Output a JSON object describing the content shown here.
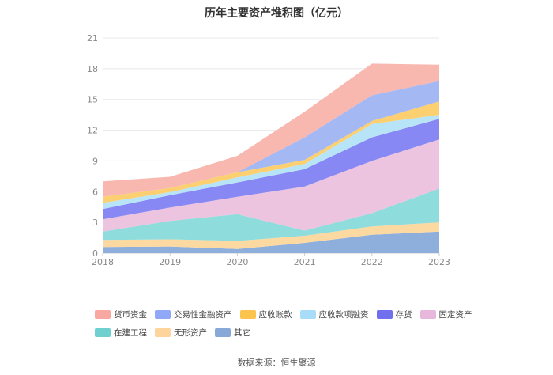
{
  "chart_data": {
    "type": "area",
    "title": "历年主要资产堆积图（亿元）",
    "x": [
      "2018",
      "2019",
      "2020",
      "2021",
      "2022",
      "2023"
    ],
    "y_ticks": [
      "0",
      "3",
      "6",
      "9",
      "12",
      "15",
      "18",
      "21"
    ],
    "ylim": [
      0,
      21
    ],
    "stacked": true,
    "grid": true,
    "legend_position": "bottom",
    "series": [
      {
        "name": "其它",
        "color": "#8eaedc",
        "values": [
          0.6,
          0.65,
          0.4,
          1.0,
          1.8,
          2.1
        ]
      },
      {
        "name": "无形资产",
        "color": "#fcd9a0",
        "values": [
          0.7,
          0.7,
          0.8,
          0.7,
          0.8,
          0.9
        ]
      },
      {
        "name": "在建工程",
        "color": "#8edcdc",
        "values": [
          0.8,
          1.8,
          2.6,
          0.5,
          1.3,
          3.3
        ]
      },
      {
        "name": "固定资产",
        "color": "#ecc4e0",
        "values": [
          1.2,
          1.3,
          1.7,
          4.3,
          5.1,
          4.8
        ]
      },
      {
        "name": "存货",
        "color": "#8888f4",
        "values": [
          1.0,
          1.2,
          1.4,
          1.7,
          2.3,
          2.0
        ]
      },
      {
        "name": "应收款项融资",
        "color": "#b8e4f8",
        "values": [
          0.6,
          0.3,
          0.5,
          0.5,
          1.3,
          0.4
        ]
      },
      {
        "name": "应收账款",
        "color": "#fcd070",
        "values": [
          0.6,
          0.4,
          0.5,
          0.4,
          0.3,
          1.3
        ]
      },
      {
        "name": "交易性金融资产",
        "color": "#a4b8f4",
        "values": [
          0.0,
          0.0,
          0.0,
          2.2,
          2.5,
          2.0
        ]
      },
      {
        "name": "货币资金",
        "color": "#f8b8b0",
        "values": [
          1.5,
          1.1,
          1.6,
          2.5,
          3.1,
          1.6
        ]
      }
    ]
  },
  "legend": {
    "row1": [
      {
        "label": "货币资金",
        "color": "#f8a8a0"
      },
      {
        "label": "交易性金融资产",
        "color": "#90a8f8"
      },
      {
        "label": "应收账款",
        "color": "#fcc44c"
      },
      {
        "label": "应收款项融资",
        "color": "#a8dcf8"
      },
      {
        "label": "存货",
        "color": "#7070ee"
      },
      {
        "label": "固定资产",
        "color": "#e8b8dc"
      }
    ],
    "row2": [
      {
        "label": "在建工程",
        "color": "#70d0d0"
      },
      {
        "label": "无形资产",
        "color": "#fcd49c"
      },
      {
        "label": "其它",
        "color": "#88a8d8"
      }
    ]
  },
  "source": "数据来源：恒生聚源"
}
